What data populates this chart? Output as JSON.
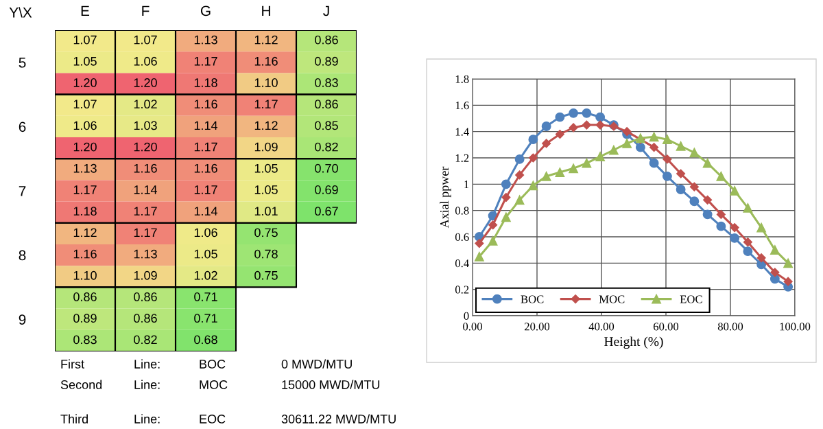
{
  "chart_data": [
    {
      "type": "heatmap",
      "ylabel": "Y\\X",
      "categories": [
        "E",
        "F",
        "G",
        "H",
        "J"
      ],
      "y_categories": [
        null,
        "5",
        null,
        null,
        "6",
        null,
        null,
        "7",
        null,
        null,
        "8",
        null,
        null,
        "9",
        null
      ],
      "cells": [
        [
          1.07,
          1.07,
          1.13,
          1.12,
          0.86
        ],
        [
          1.05,
          1.06,
          1.17,
          1.16,
          0.89
        ],
        [
          1.2,
          1.2,
          1.18,
          1.1,
          0.83
        ],
        [
          1.07,
          1.02,
          1.16,
          1.17,
          0.86
        ],
        [
          1.06,
          1.03,
          1.14,
          1.12,
          0.85
        ],
        [
          1.2,
          1.2,
          1.17,
          1.09,
          0.82
        ],
        [
          1.13,
          1.16,
          1.16,
          1.05,
          0.7
        ],
        [
          1.17,
          1.14,
          1.17,
          1.05,
          0.69
        ],
        [
          1.18,
          1.17,
          1.14,
          1.01,
          0.67
        ],
        [
          1.12,
          1.17,
          1.06,
          0.75,
          null
        ],
        [
          1.16,
          1.13,
          1.05,
          0.78,
          null
        ],
        [
          1.1,
          1.09,
          1.02,
          0.75,
          null
        ],
        [
          0.86,
          0.86,
          0.71,
          null,
          null
        ],
        [
          0.89,
          0.86,
          0.71,
          null,
          null
        ],
        [
          0.83,
          0.82,
          0.68,
          null,
          null
        ]
      ],
      "cell_labels": [
        [
          "1.07",
          "1.07",
          "1.13",
          "1.12",
          "0.86"
        ],
        [
          "1.05",
          "1.06",
          "1.17",
          "1.16",
          "0.89"
        ],
        [
          "1.20",
          "1.20",
          "1.18",
          "1.10",
          "0.83"
        ],
        [
          "1.07",
          "1.02",
          "1.16",
          "1.17",
          "0.86"
        ],
        [
          "1.06",
          "1.03",
          "1.14",
          "1.12",
          "0.85"
        ],
        [
          "1.20",
          "1.20",
          "1.17",
          "1.09",
          "0.82"
        ],
        [
          "1.13",
          "1.16",
          "1.16",
          "1.05",
          "0.70"
        ],
        [
          "1.17",
          "1.14",
          "1.17",
          "1.05",
          "0.69"
        ],
        [
          "1.18",
          "1.17",
          "1.14",
          "1.01",
          "0.67"
        ],
        [
          "1.12",
          "1.17",
          "1.06",
          "0.75",
          null
        ],
        [
          "1.16",
          "1.13",
          "1.05",
          "0.78",
          null
        ],
        [
          "1.10",
          "1.09",
          "1.02",
          "0.75",
          null
        ],
        [
          "0.86",
          "0.86",
          "0.71",
          null,
          null
        ],
        [
          "0.89",
          "0.86",
          "0.71",
          null,
          null
        ],
        [
          "0.83",
          "0.82",
          "0.68",
          null,
          null
        ]
      ],
      "annotations": [
        "First",
        "Line:",
        "BOC",
        "0 MWD/MTU",
        "Second",
        "Line:",
        "MOC",
        "15000 MWD/MTU",
        "Third",
        "Line:",
        "EOC",
        "30611.22 MWD/MTU"
      ]
    },
    {
      "type": "line",
      "xlabel": "Height (%)",
      "ylabel": "Axial ppwer",
      "x": [
        2.1,
        6.3,
        10.4,
        14.6,
        18.8,
        22.9,
        27.1,
        31.3,
        35.4,
        39.6,
        43.8,
        47.9,
        52.1,
        56.3,
        60.4,
        64.6,
        68.8,
        72.9,
        77.1,
        81.3,
        85.4,
        89.6,
        93.8,
        97.9
      ],
      "series": [
        {
          "name": "BOC",
          "color": "#4f81bd",
          "marker": "circle",
          "values": [
            0.6,
            0.76,
            1.0,
            1.19,
            1.34,
            1.44,
            1.51,
            1.54,
            1.54,
            1.51,
            1.45,
            1.38,
            1.28,
            1.16,
            1.06,
            0.96,
            0.87,
            0.77,
            0.68,
            0.59,
            0.49,
            0.39,
            0.28,
            0.22
          ]
        },
        {
          "name": "MOC",
          "color": "#c0504d",
          "marker": "diamond",
          "values": [
            0.55,
            0.69,
            0.9,
            1.07,
            1.2,
            1.31,
            1.38,
            1.43,
            1.45,
            1.45,
            1.44,
            1.4,
            1.34,
            1.28,
            1.19,
            1.08,
            0.98,
            0.88,
            0.77,
            0.67,
            0.56,
            0.44,
            0.33,
            0.26
          ]
        },
        {
          "name": "EOC",
          "color": "#9bbb59",
          "marker": "triangle",
          "values": [
            0.45,
            0.57,
            0.75,
            0.88,
            0.99,
            1.06,
            1.09,
            1.12,
            1.16,
            1.21,
            1.26,
            1.31,
            1.35,
            1.36,
            1.34,
            1.29,
            1.24,
            1.16,
            1.06,
            0.95,
            0.82,
            0.67,
            0.5,
            0.4
          ]
        }
      ],
      "xlim": [
        0,
        100
      ],
      "xticks": [
        {
          "value": 0,
          "label": "0.00"
        },
        {
          "value": 20,
          "label": "20.00"
        },
        {
          "value": 40,
          "label": "40.00"
        },
        {
          "value": 60,
          "label": "60.00"
        },
        {
          "value": 80,
          "label": "80.00"
        },
        {
          "value": 100,
          "label": "100.00"
        }
      ],
      "ylim": [
        0,
        1.8
      ],
      "yticks": [
        0,
        0.2,
        0.4,
        0.6,
        0.8,
        1,
        1.2,
        1.4,
        1.6,
        1.8
      ],
      "grid": true,
      "legend": "bottom left"
    }
  ]
}
